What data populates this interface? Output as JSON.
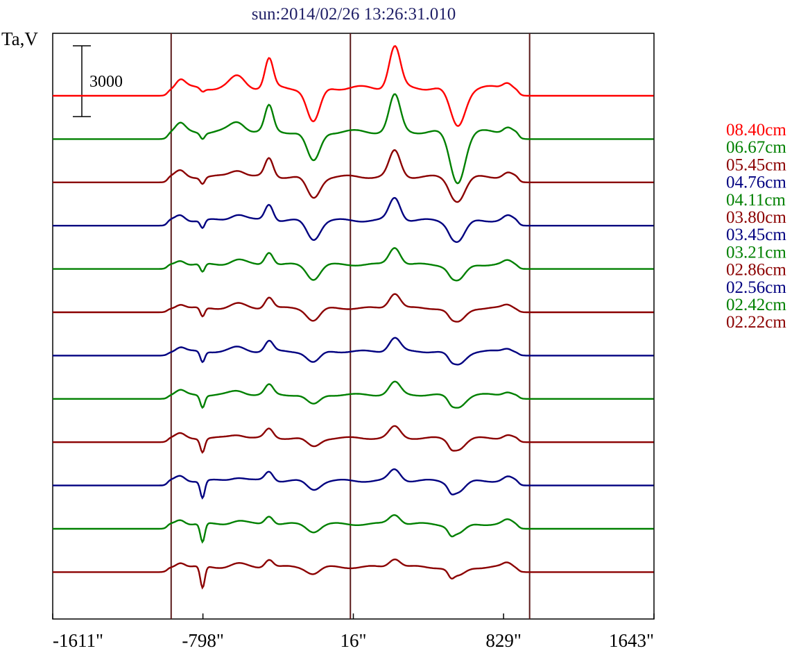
{
  "chart_data": {
    "type": "line",
    "title": "sun:2014/02/26 13:26:31.010",
    "ylabel": "Ta,V",
    "scale_bar": {
      "label": "3000",
      "value": 3000
    },
    "x_range": [
      -1611,
      1643
    ],
    "x_ticks": [
      -1611,
      -798,
      16,
      829,
      1643
    ],
    "x_tick_labels": [
      "-1611\"",
      "-798\"",
      "16\"",
      "829\"",
      "1643\""
    ],
    "x_units": "arcsec",
    "solar_markers_x": [
      -970,
      0,
      970
    ],
    "grid": false,
    "legend_position": "right",
    "colors": {
      "title": "#1f1f66",
      "axes": "#000000",
      "marker": "#5a1a1a"
    },
    "series": [
      {
        "name": "08.40cm",
        "color": "#ff0000",
        "offset": 0,
        "scale": 1.35,
        "drift": 0.0
      },
      {
        "name": "06.67cm",
        "color": "#008000",
        "offset": -1,
        "scale": 1.25,
        "drift": 0.05
      },
      {
        "name": "05.45cm",
        "color": "#8b0000",
        "offset": -2,
        "scale": 0.95,
        "drift": 0.1
      },
      {
        "name": "04.76cm",
        "color": "#000080",
        "offset": -3,
        "scale": 0.9,
        "drift": 0.15
      },
      {
        "name": "04.11cm",
        "color": "#008000",
        "offset": -4,
        "scale": 0.75,
        "drift": 0.2
      },
      {
        "name": "03.80cm",
        "color": "#8b0000",
        "offset": -5,
        "scale": 0.7,
        "drift": 0.25
      },
      {
        "name": "03.45cm",
        "color": "#000080",
        "offset": -6,
        "scale": 0.7,
        "drift": 0.3
      },
      {
        "name": "03.21cm",
        "color": "#008000",
        "offset": -7,
        "scale": 0.7,
        "drift": 0.35
      },
      {
        "name": "02.86cm",
        "color": "#8b0000",
        "offset": -8,
        "scale": 0.7,
        "drift": 0.4
      },
      {
        "name": "02.56cm",
        "color": "#000080",
        "offset": -9,
        "scale": 0.8,
        "drift": 0.45
      },
      {
        "name": "02.42cm",
        "color": "#008000",
        "offset": -10,
        "scale": 0.8,
        "drift": 0.5
      },
      {
        "name": "02.22cm",
        "color": "#8b0000",
        "offset": -11,
        "scale": 0.85,
        "drift": 0.55
      }
    ]
  }
}
